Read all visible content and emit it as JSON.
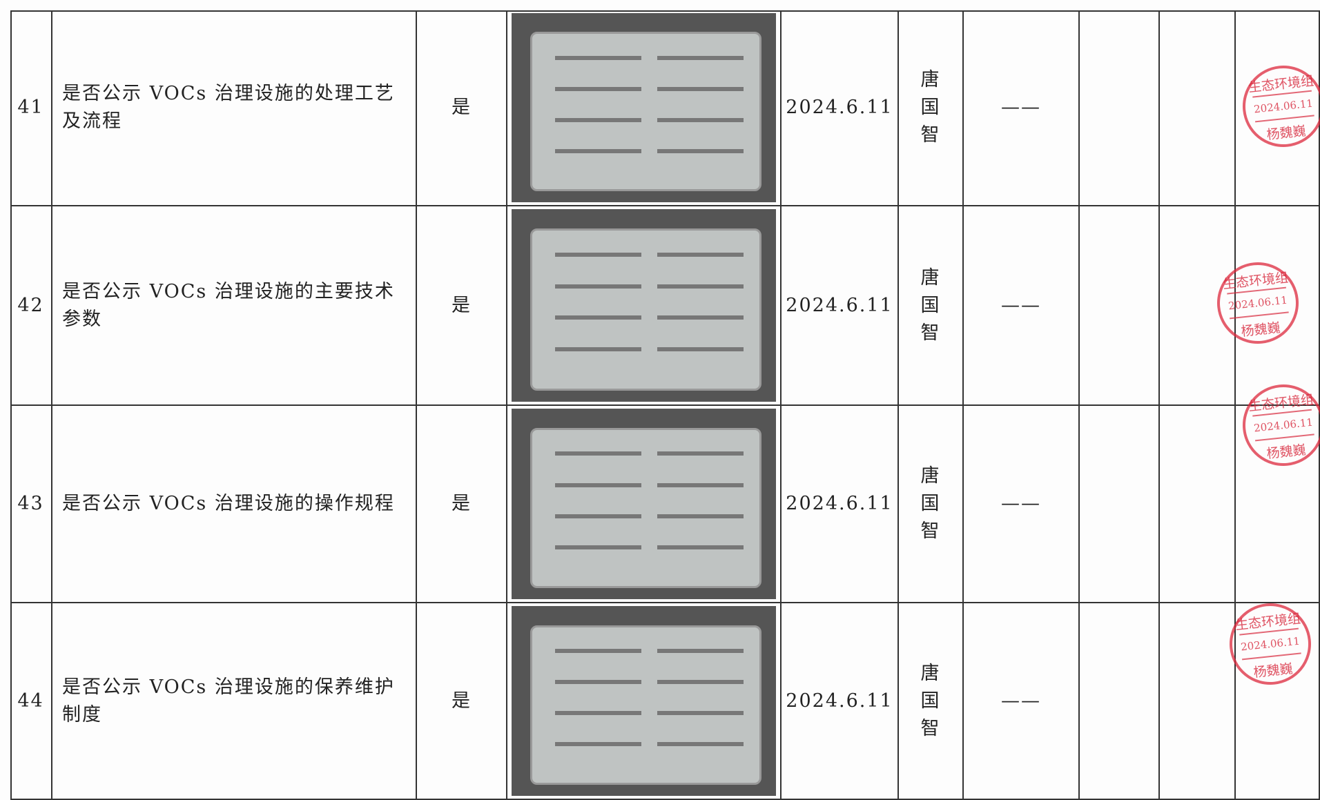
{
  "table": {
    "rows": [
      {
        "no": "41",
        "item": "是否公示 VOCs 治理设施的处理工艺及流程",
        "result": "是",
        "date": "2024.6.11",
        "person": "唐国智",
        "remark": "——"
      },
      {
        "no": "42",
        "item": "是否公示 VOCs 治理设施的主要技术参数",
        "result": "是",
        "date": "2024.6.11",
        "person": "唐国智",
        "remark": "——"
      },
      {
        "no": "43",
        "item": "是否公示 VOCs 治理设施的操作规程",
        "result": "是",
        "date": "2024.6.11",
        "person": "唐国智",
        "remark": "——"
      },
      {
        "no": "44",
        "item": "是否公示 VOCs 治理设施的保养维护制度",
        "result": "是",
        "date": "2024.6.11",
        "person": "唐国智",
        "remark": "——"
      }
    ]
  },
  "stamps": [
    {
      "org": "生态环境组",
      "date": "2024.06.11",
      "name": "杨魏巍"
    },
    {
      "org": "生态环境组",
      "date": "2024.06.11",
      "name": "杨魏巍"
    },
    {
      "org": "生态环境组",
      "date": "2024.06.11",
      "name": "杨魏巍"
    },
    {
      "org": "生态环境组",
      "date": "2024.06.11",
      "name": "杨魏巍"
    }
  ]
}
